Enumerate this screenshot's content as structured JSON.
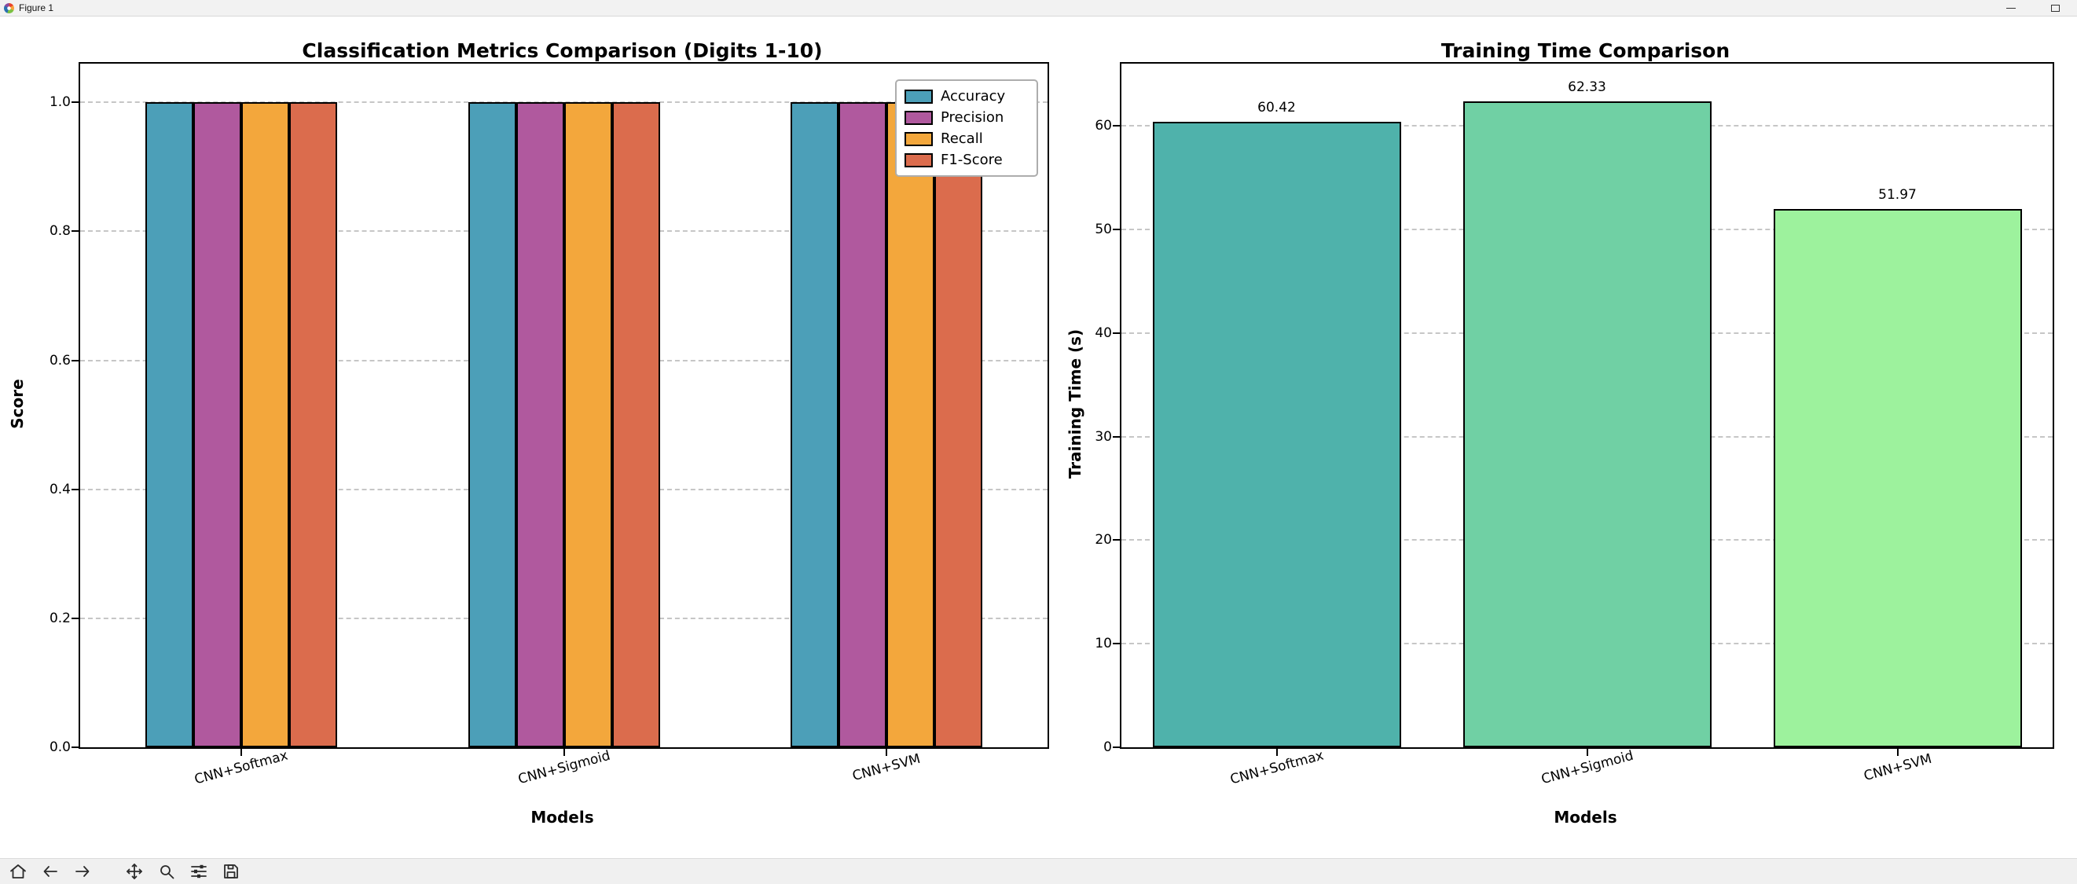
{
  "window": {
    "title": "Figure 1",
    "icon": "matplotlib-logo",
    "controls": {
      "minimize": "minimize-icon",
      "maximize": "maximize-icon"
    }
  },
  "chart_data": [
    {
      "type": "bar",
      "title": "Classification Metrics Comparison (Digits 1-10)",
      "xlabel": "Models",
      "ylabel": "Score",
      "categories": [
        "CNN+Softmax",
        "CNN+Sigmoid",
        "CNN+SVM"
      ],
      "series": [
        {
          "name": "Accuracy",
          "color": "#4C9FB8",
          "values": [
            1.0,
            1.0,
            1.0
          ]
        },
        {
          "name": "Precision",
          "color": "#B0599E",
          "values": [
            1.0,
            1.0,
            1.0
          ]
        },
        {
          "name": "Recall",
          "color": "#F3A73C",
          "values": [
            1.0,
            1.0,
            1.0
          ]
        },
        {
          "name": "F1-Score",
          "color": "#DB6C4D",
          "values": [
            1.0,
            1.0,
            1.0
          ]
        }
      ],
      "ylim": [
        0,
        1.06
      ],
      "yticks": [
        0,
        0.2,
        0.4,
        0.6,
        0.8,
        1.0
      ],
      "ytick_labels": [
        "0.0",
        "0.2",
        "0.4",
        "0.6",
        "0.8",
        "1.0"
      ],
      "grid": true,
      "grid_style": "dashed",
      "legend_position": "upper right"
    },
    {
      "type": "bar",
      "title": "Training Time Comparison",
      "xlabel": "Models",
      "ylabel": "Training Time (s)",
      "categories": [
        "CNN+Softmax",
        "CNN+Sigmoid",
        "CNN+SVM"
      ],
      "values": [
        60.42,
        62.33,
        51.97
      ],
      "value_labels": [
        "60.42",
        "62.33",
        "51.97"
      ],
      "bar_colors": [
        "#4FB2AB",
        "#70D0A4",
        "#9DF29D"
      ],
      "ylim": [
        0,
        66
      ],
      "yticks": [
        0,
        10,
        20,
        30,
        40,
        50,
        60
      ],
      "ytick_labels": [
        "0",
        "10",
        "20",
        "30",
        "40",
        "50",
        "60"
      ],
      "grid": true,
      "grid_style": "dashed"
    }
  ],
  "toolbar": {
    "buttons": [
      "home",
      "back",
      "forward",
      "pan",
      "zoom",
      "configure-subplots",
      "save"
    ]
  }
}
